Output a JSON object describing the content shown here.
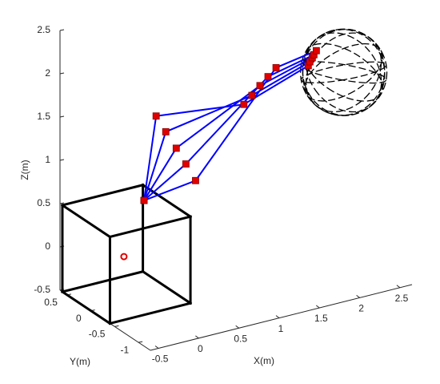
{
  "chart_data": {
    "type": "line3d",
    "xlabel": "X(m)",
    "ylabel": "Y(m)",
    "zlabel": "Z(m)",
    "xlim": [
      -0.6,
      2.65
    ],
    "ylim": [
      -1.25,
      0.65
    ],
    "zlim": [
      -0.5,
      2.5
    ],
    "xticks": [
      -0.5,
      0,
      0.5,
      1,
      1.5,
      2,
      2.5
    ],
    "yticks": [
      -1,
      -0.5,
      0,
      0.5
    ],
    "zticks": [
      -0.5,
      0,
      0.5,
      1,
      1.5,
      2,
      2.5
    ],
    "line_color": "#0000ff",
    "joint_color": "#e00000",
    "box_color": "#000000",
    "series": [
      {
        "x": [
          0.06,
          0.21,
          1.3,
          2.1
        ],
        "y": [
          0,
          0,
          0,
          0
        ],
        "z": [
          0.62,
          1.56,
          1.44,
          1.7
        ]
      },
      {
        "x": [
          0.06,
          0.33,
          1.4,
          2.12
        ],
        "y": [
          0,
          0,
          0,
          0
        ],
        "z": [
          0.62,
          1.35,
          1.52,
          1.74
        ]
      },
      {
        "x": [
          0.06,
          0.46,
          1.5,
          2.15
        ],
        "y": [
          0,
          0,
          0,
          0
        ],
        "z": [
          0.62,
          1.13,
          1.61,
          1.78
        ]
      },
      {
        "x": [
          0.06,
          0.58,
          1.6,
          2.17
        ],
        "y": [
          0,
          0,
          0,
          0
        ],
        "z": [
          0.62,
          0.92,
          1.69,
          1.81
        ]
      },
      {
        "x": [
          0.06,
          0.7,
          1.7,
          2.2
        ],
        "y": [
          0,
          0,
          0,
          0
        ],
        "z": [
          0.62,
          0.7,
          1.77,
          1.85
        ]
      }
    ],
    "box": {
      "x": [
        -0.6,
        0.4
      ],
      "y": [
        -0.4,
        0.6
      ],
      "z": [
        -0.5,
        0.5
      ]
    },
    "sphere": {
      "center": [
        2.54,
        0,
        1.52
      ],
      "radius": 0.5
    },
    "target": [
      -0.19,
      0,
      0.03
    ]
  }
}
